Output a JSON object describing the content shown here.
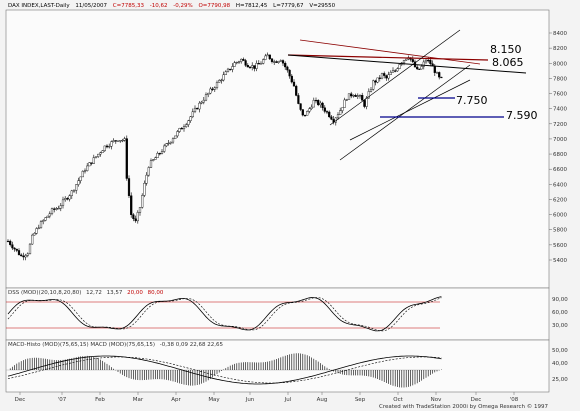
{
  "header": {
    "symbol": "DAX INDEX,LAST-Daily",
    "date": "11/05/2007",
    "close": "C=7785,33",
    "change": "-10,62",
    "change_pct": "-0,29%",
    "open": "O=7790,98",
    "high": "H=7812,45",
    "low": "L=7779,67",
    "volume": "V=29550"
  },
  "dss": {
    "label": "DSS (MOD)(20,10,8,20,80)",
    "v1": "12,72",
    "v2": "13,57",
    "v3": "20,00",
    "v4": "80,00",
    "ticks": [
      "90,00",
      "60,00",
      "30,00"
    ]
  },
  "macd": {
    "label": "MACD-Histo (MOD)(75,65,15) MACD (MOD)(75,65,15)",
    "values": "-0,38  0,09  22,68  22,65",
    "ticks": [
      "50,00",
      "40,00",
      "25,00"
    ]
  },
  "levels": {
    "l8150": "8.150",
    "l8065": "8.065",
    "l7750": "7.750",
    "l7590": "7.590"
  },
  "footer": "Created with TradeStation 2000i by Omega Research © 1997",
  "chart_data": {
    "type": "candlestick",
    "title": "DAX INDEX,LAST-Daily",
    "y_ticks": [
      5400,
      5600,
      5800,
      6000,
      6200,
      6400,
      6600,
      6800,
      7000,
      7200,
      7400,
      7600,
      7800,
      8000,
      8200,
      8400
    ],
    "y_tick_labels": [
      "5400",
      "5600",
      "5800",
      "6000",
      "6200",
      "6400",
      "6600",
      "6800",
      "7000",
      "7200",
      "7400",
      "7600",
      "7800",
      "8000",
      "8200",
      "8400"
    ],
    "ylim": [
      5350,
      8500
    ],
    "x_ticks": [
      "Dec",
      "'07",
      "Feb",
      "Mar",
      "Apr",
      "May",
      "Jun",
      "Jul",
      "Aug",
      "Sep",
      "Oct",
      "Nov",
      "Dec",
      "'08"
    ],
    "price_path": [
      [
        0,
        5650
      ],
      [
        3,
        5550
      ],
      [
        6,
        5450
      ],
      [
        9,
        5500
      ],
      [
        11,
        5700
      ],
      [
        14,
        5850
      ],
      [
        17,
        5950
      ],
      [
        20,
        6050
      ],
      [
        23,
        6100
      ],
      [
        26,
        6200
      ],
      [
        29,
        6300
      ],
      [
        32,
        6450
      ],
      [
        35,
        6600
      ],
      [
        38,
        6700
      ],
      [
        41,
        6800
      ],
      [
        44,
        6900
      ],
      [
        47,
        6950
      ],
      [
        50,
        7000
      ],
      [
        53,
        6980
      ],
      [
        54,
        6500
      ],
      [
        56,
        6000
      ],
      [
        58,
        5900
      ],
      [
        60,
        6100
      ],
      [
        62,
        6400
      ],
      [
        64,
        6650
      ],
      [
        67,
        6750
      ],
      [
        70,
        6850
      ],
      [
        73,
        6950
      ],
      [
        76,
        7050
      ],
      [
        79,
        7150
      ],
      [
        82,
        7250
      ],
      [
        85,
        7380
      ],
      [
        88,
        7500
      ],
      [
        91,
        7600
      ],
      [
        94,
        7700
      ],
      [
        97,
        7800
      ],
      [
        100,
        7900
      ],
      [
        103,
        8000
      ],
      [
        106,
        8050
      ],
      [
        109,
        7980
      ],
      [
        112,
        7950
      ],
      [
        115,
        8010
      ],
      [
        118,
        8100
      ],
      [
        121,
        8020
      ],
      [
        124,
        8060
      ],
      [
        127,
        7900
      ],
      [
        130,
        7700
      ],
      [
        132,
        7450
      ],
      [
        134,
        7300
      ],
      [
        136,
        7350
      ],
      [
        139,
        7500
      ],
      [
        142,
        7450
      ],
      [
        145,
        7350
      ],
      [
        148,
        7250
      ],
      [
        151,
        7380
      ],
      [
        154,
        7550
      ],
      [
        157,
        7600
      ],
      [
        160,
        7550
      ],
      [
        162,
        7450
      ],
      [
        164,
        7600
      ],
      [
        166,
        7750
      ],
      [
        168,
        7780
      ],
      [
        170,
        7850
      ],
      [
        172,
        7800
      ],
      [
        174,
        7870
      ],
      [
        176,
        7900
      ],
      [
        178,
        8000
      ],
      [
        180,
        8050
      ],
      [
        182,
        8100
      ],
      [
        184,
        8000
      ],
      [
        186,
        7900
      ],
      [
        188,
        7950
      ],
      [
        190,
        8050
      ],
      [
        192,
        8000
      ],
      [
        194,
        7900
      ],
      [
        196,
        7800
      ],
      [
        197,
        7790
      ]
    ],
    "annotations": [
      "8.150",
      "8.065",
      "7.750",
      "7.590"
    ]
  }
}
